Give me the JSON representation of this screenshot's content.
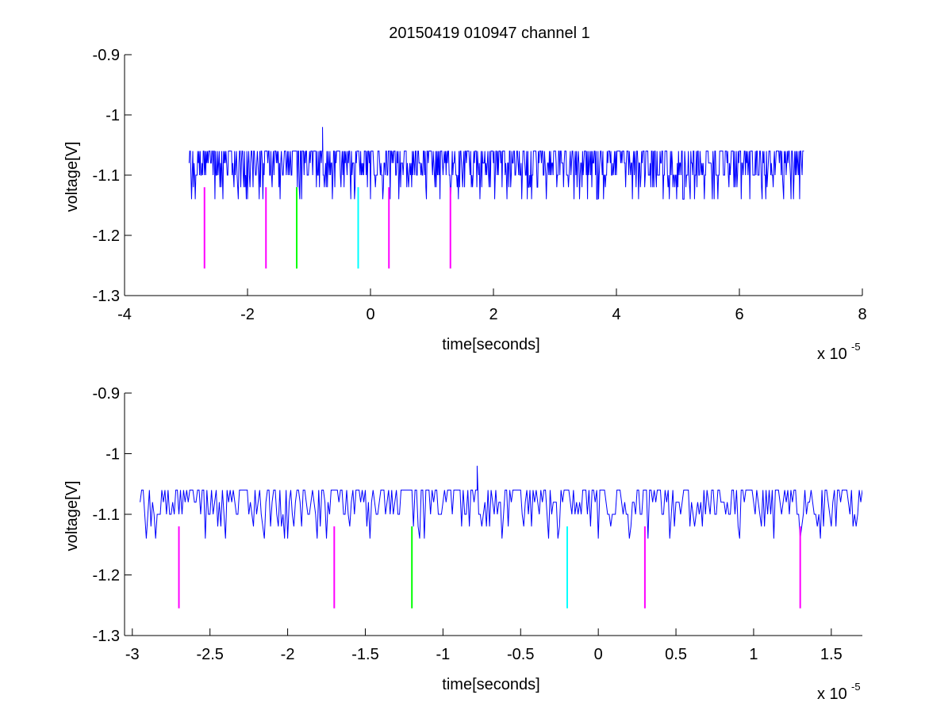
{
  "figure": {
    "title": "20150419 010947 channel 1",
    "colors": {
      "trace": "#0000ff",
      "magenta": "#ff00ff",
      "green": "#00ff00",
      "cyan": "#00ffff",
      "axis": "#000000",
      "background": "#ffffff"
    }
  },
  "chart_data": [
    {
      "type": "line",
      "title": "20150419 010947 channel 1",
      "xlabel": "time[seconds]",
      "ylabel": "voltage[V]",
      "x_exponent_label": "x 10",
      "x_exponent": "-5",
      "x_scale": 1e-05,
      "xlim": [
        -4,
        8
      ],
      "ylim": [
        -1.3,
        -0.9
      ],
      "xticks": [
        -4,
        -2,
        0,
        2,
        4,
        6,
        8
      ],
      "xtick_labels": [
        "-4",
        "-2",
        "0",
        "2",
        "4",
        "6",
        "8"
      ],
      "yticks": [
        -0.9,
        -1,
        -1.1,
        -1.2,
        -1.3
      ],
      "ytick_labels": [
        "-0.9",
        "-1",
        "-1.1",
        "-1.2",
        "-1.3"
      ],
      "grid": false,
      "series": [
        {
          "style": "noisy trace",
          "color": "#0000ff",
          "x_range": [
            -2.95,
            7.05
          ],
          "baseline": -1.1,
          "levels": [
            -1.14,
            -1.12,
            -1.1,
            -1.08,
            -1.06
          ],
          "spike": {
            "x": -0.78,
            "y": -1.02
          }
        }
      ],
      "markers": [
        {
          "x": -2.7,
          "y_top": -1.12,
          "y_bottom": -1.255,
          "color": "#ff00ff"
        },
        {
          "x": -1.7,
          "y_top": -1.12,
          "y_bottom": -1.255,
          "color": "#ff00ff"
        },
        {
          "x": -1.2,
          "y_top": -1.12,
          "y_bottom": -1.255,
          "color": "#00ff00"
        },
        {
          "x": -0.2,
          "y_top": -1.12,
          "y_bottom": -1.255,
          "color": "#00ffff"
        },
        {
          "x": 0.3,
          "y_top": -1.12,
          "y_bottom": -1.255,
          "color": "#ff00ff"
        },
        {
          "x": 1.3,
          "y_top": -1.12,
          "y_bottom": -1.255,
          "color": "#ff00ff"
        }
      ]
    },
    {
      "type": "line",
      "title": "",
      "xlabel": "time[seconds]",
      "ylabel": "voltage[V]",
      "x_exponent_label": "x 10",
      "x_exponent": "-5",
      "x_scale": 1e-05,
      "xlim": [
        -3.05,
        1.7
      ],
      "ylim": [
        -1.3,
        -0.9
      ],
      "xticks": [
        -3,
        -2.5,
        -2,
        -1.5,
        -1,
        -0.5,
        0,
        0.5,
        1,
        1.5
      ],
      "xtick_labels": [
        "-3",
        "-2.5",
        "-2",
        "-1.5",
        "-1",
        "-0.5",
        "0",
        "0.5",
        "1",
        "1.5"
      ],
      "yticks": [
        -0.9,
        -1,
        -1.1,
        -1.2,
        -1.3
      ],
      "ytick_labels": [
        "-0.9",
        "-1",
        "-1.1",
        "-1.2",
        "-1.3"
      ],
      "grid": false,
      "series": [
        {
          "style": "noisy trace",
          "color": "#0000ff",
          "x_range": [
            -2.95,
            1.7
          ],
          "baseline": -1.1,
          "levels": [
            -1.14,
            -1.12,
            -1.1,
            -1.08,
            -1.06
          ],
          "spike": {
            "x": -0.78,
            "y": -1.02
          }
        }
      ],
      "markers": [
        {
          "x": -2.7,
          "y_top": -1.12,
          "y_bottom": -1.255,
          "color": "#ff00ff"
        },
        {
          "x": -1.7,
          "y_top": -1.12,
          "y_bottom": -1.255,
          "color": "#ff00ff"
        },
        {
          "x": -1.2,
          "y_top": -1.12,
          "y_bottom": -1.255,
          "color": "#00ff00"
        },
        {
          "x": -0.2,
          "y_top": -1.12,
          "y_bottom": -1.255,
          "color": "#00ffff"
        },
        {
          "x": 0.3,
          "y_top": -1.12,
          "y_bottom": -1.255,
          "color": "#ff00ff"
        },
        {
          "x": 1.3,
          "y_top": -1.12,
          "y_bottom": -1.255,
          "color": "#ff00ff"
        }
      ]
    }
  ]
}
